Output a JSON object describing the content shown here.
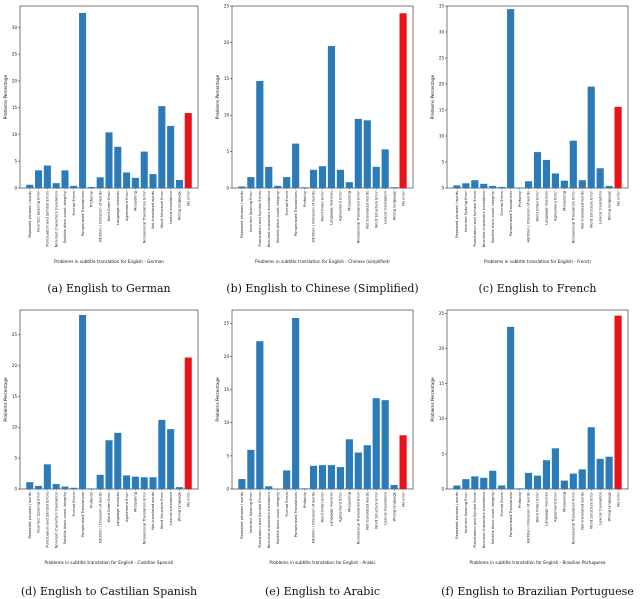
{
  "chart_data": [
    {
      "type": "bar",
      "panel_caption": "(a) English to German",
      "xlabel": "Problems in subtitle translation for English - German",
      "ylabel": "Problems Percentage",
      "ylim": [
        0,
        34
      ],
      "yticks": [
        0,
        5,
        10,
        15,
        20,
        25,
        30
      ],
      "categories": [
        "Repeated phrases / words",
        "Incorrect Spacing Error",
        "Punctuation and Symbol Errors",
        "Non-text characters translation",
        "Subtitle block count integrity",
        "Format Errors",
        "Paraphrased Translations",
        "Profanity",
        "Addition / Omission of words",
        "Word Order Error",
        "Language nuances",
        "Agreement Error",
        "Misspelling",
        "Nonsensical Translation Error",
        "Not-translated words",
        "Word Structure Error",
        "Lexical translation",
        "Wrong language",
        "No error"
      ],
      "values": [
        0.6,
        3.3,
        4.2,
        0.9,
        3.3,
        0.4,
        32.7,
        0.2,
        2.0,
        10.4,
        7.7,
        2.9,
        1.9,
        6.8,
        2.6,
        15.3,
        11.6,
        1.5,
        14.0
      ],
      "highlight": "No error"
    },
    {
      "type": "bar",
      "panel_caption": "(b) English to Chinese (Simplified)",
      "xlabel": "Problems in subtitle translation for English - Chinese (simplified)",
      "ylabel": "Problems Percentage",
      "ylim": [
        0,
        25
      ],
      "yticks": [
        0,
        5,
        10,
        15,
        20,
        25
      ],
      "categories": [
        "Repeated phrases / words",
        "Incorrect Spacing Error",
        "Punctuation and Symbol Errors",
        "Non-text characters translation",
        "Subtitle block count integrity",
        "Format Errors",
        "Paraphrased Translations",
        "Profanity",
        "Addition / Omission of words",
        "Word Order Error",
        "Language nuances",
        "Agreement Error",
        "Misspelling",
        "Nonsensical Translation Error",
        "Not-translated words",
        "Word Structure Error",
        "Lexical translation",
        "Wrong language",
        "No error"
      ],
      "values": [
        0.2,
        1.5,
        14.7,
        2.9,
        0.3,
        1.5,
        6.1,
        0.1,
        2.5,
        3.0,
        19.5,
        2.5,
        0.8,
        9.5,
        9.3,
        2.9,
        5.3,
        0.1,
        24.0
      ],
      "highlight": "No error"
    },
    {
      "type": "bar",
      "panel_caption": "(c) English to French",
      "xlabel": "Problems in subtitle translation for English - French",
      "ylabel": "Problems Percentage",
      "ylim": [
        0,
        35
      ],
      "yticks": [
        0,
        5,
        10,
        15,
        20,
        25,
        30,
        35
      ],
      "categories": [
        "Repeated phrases / words",
        "Incorrect Spacing Error",
        "Punctuation and Symbol Errors",
        "Non-text characters translation",
        "Subtitle block count integrity",
        "Format Errors",
        "Paraphrased Translations",
        "Profanity",
        "Addition / Omission of words",
        "Word Order Error",
        "Language nuances",
        "Agreement Error",
        "Misspelling",
        "Nonsensical Translation Error",
        "Not-translated words",
        "Word Structure Error",
        "Lexical translation",
        "Wrong language",
        "No error"
      ],
      "values": [
        0.5,
        0.9,
        1.5,
        0.8,
        0.4,
        0.2,
        34.4,
        0.1,
        1.3,
        6.9,
        5.4,
        2.8,
        1.4,
        9.1,
        1.5,
        19.5,
        3.8,
        0.4,
        15.6
      ],
      "highlight": "No error"
    },
    {
      "type": "bar",
      "panel_caption": "(d) English to Castilian Spanish",
      "xlabel": "Problems in subtitle translation for English - Castilian Spanish",
      "ylabel": "Problems Percentage",
      "ylim": [
        0,
        29
      ],
      "yticks": [
        0,
        5,
        10,
        15,
        20,
        25
      ],
      "categories": [
        "Repeated phrases / words",
        "Incorrect Spacing Error",
        "Punctuation and Symbol Errors",
        "Non-text characters translation",
        "Subtitle block count integrity",
        "Format Errors",
        "Paraphrased Translations",
        "Profanity",
        "Addition / Omission of words",
        "Word Order Error",
        "Language nuances",
        "Agreement Error",
        "Misspelling",
        "Nonsensical Translation Error",
        "Not-translated words",
        "Word Structure Error",
        "Lexical translation",
        "Wrong language",
        "No error"
      ],
      "values": [
        1.1,
        0.5,
        4.0,
        0.8,
        0.4,
        0.2,
        28.2,
        0.1,
        2.3,
        7.9,
        9.1,
        2.2,
        2.0,
        1.9,
        1.9,
        11.2,
        9.7,
        0.3,
        21.3
      ],
      "highlight": "No error"
    },
    {
      "type": "bar",
      "panel_caption": "(e) English to Arabic",
      "xlabel": "Problems in subtitle translation for English - Arabic",
      "ylabel": "Problems Percentage",
      "ylim": [
        0,
        27
      ],
      "yticks": [
        0,
        5,
        10,
        15,
        20,
        25
      ],
      "categories": [
        "Repeated phrases / words",
        "Incorrect Spacing Error",
        "Punctuation and Symbol Errors",
        "Non-text characters translation",
        "Subtitle block count integrity",
        "Format Errors",
        "Paraphrased Translations",
        "Profanity",
        "Addition / Omission of words",
        "Word Order Error",
        "Language nuances",
        "Agreement Error",
        "Misspelling",
        "Nonsensical Translation Error",
        "Not-translated words",
        "Word Structure Error",
        "Lexical translation",
        "Wrong language",
        "No error"
      ],
      "values": [
        1.5,
        5.9,
        22.3,
        0.4,
        0.0,
        2.8,
        25.8,
        0.1,
        3.5,
        3.6,
        3.6,
        3.3,
        7.5,
        5.5,
        6.6,
        13.7,
        13.4,
        0.6,
        8.1
      ],
      "highlight": "No error"
    },
    {
      "type": "bar",
      "panel_caption": "(f) English to Brazilian Portuguese",
      "xlabel": "Problems in subtitle translation for English - Brazilian Portuguese",
      "ylabel": "Problems Percentage",
      "ylim": [
        0,
        25.5
      ],
      "yticks": [
        0,
        5,
        10,
        15,
        20,
        25
      ],
      "categories": [
        "Repeated phrases / words",
        "Incorrect Spacing Error",
        "Punctuation and Symbol Errors",
        "Non-text characters translation",
        "Subtitle block count integrity",
        "Format Errors",
        "Paraphrased Translations",
        "Profanity",
        "Addition / Omission of words",
        "Word Order Error",
        "Language nuances",
        "Agreement Error",
        "Misspelling",
        "Nonsensical Translation Error",
        "Not-translated words",
        "Word Structure Error",
        "Lexical translation",
        "Wrong language",
        "No error"
      ],
      "values": [
        0.5,
        1.4,
        1.8,
        1.6,
        2.6,
        0.5,
        23.1,
        0.1,
        2.3,
        1.9,
        4.1,
        5.8,
        1.2,
        2.2,
        2.8,
        8.8,
        4.3,
        4.6,
        24.7
      ],
      "highlight": "No error"
    }
  ],
  "colors": {
    "bar": "#2b7bb9",
    "highlight": "#e8141a",
    "axis": "#222222"
  }
}
